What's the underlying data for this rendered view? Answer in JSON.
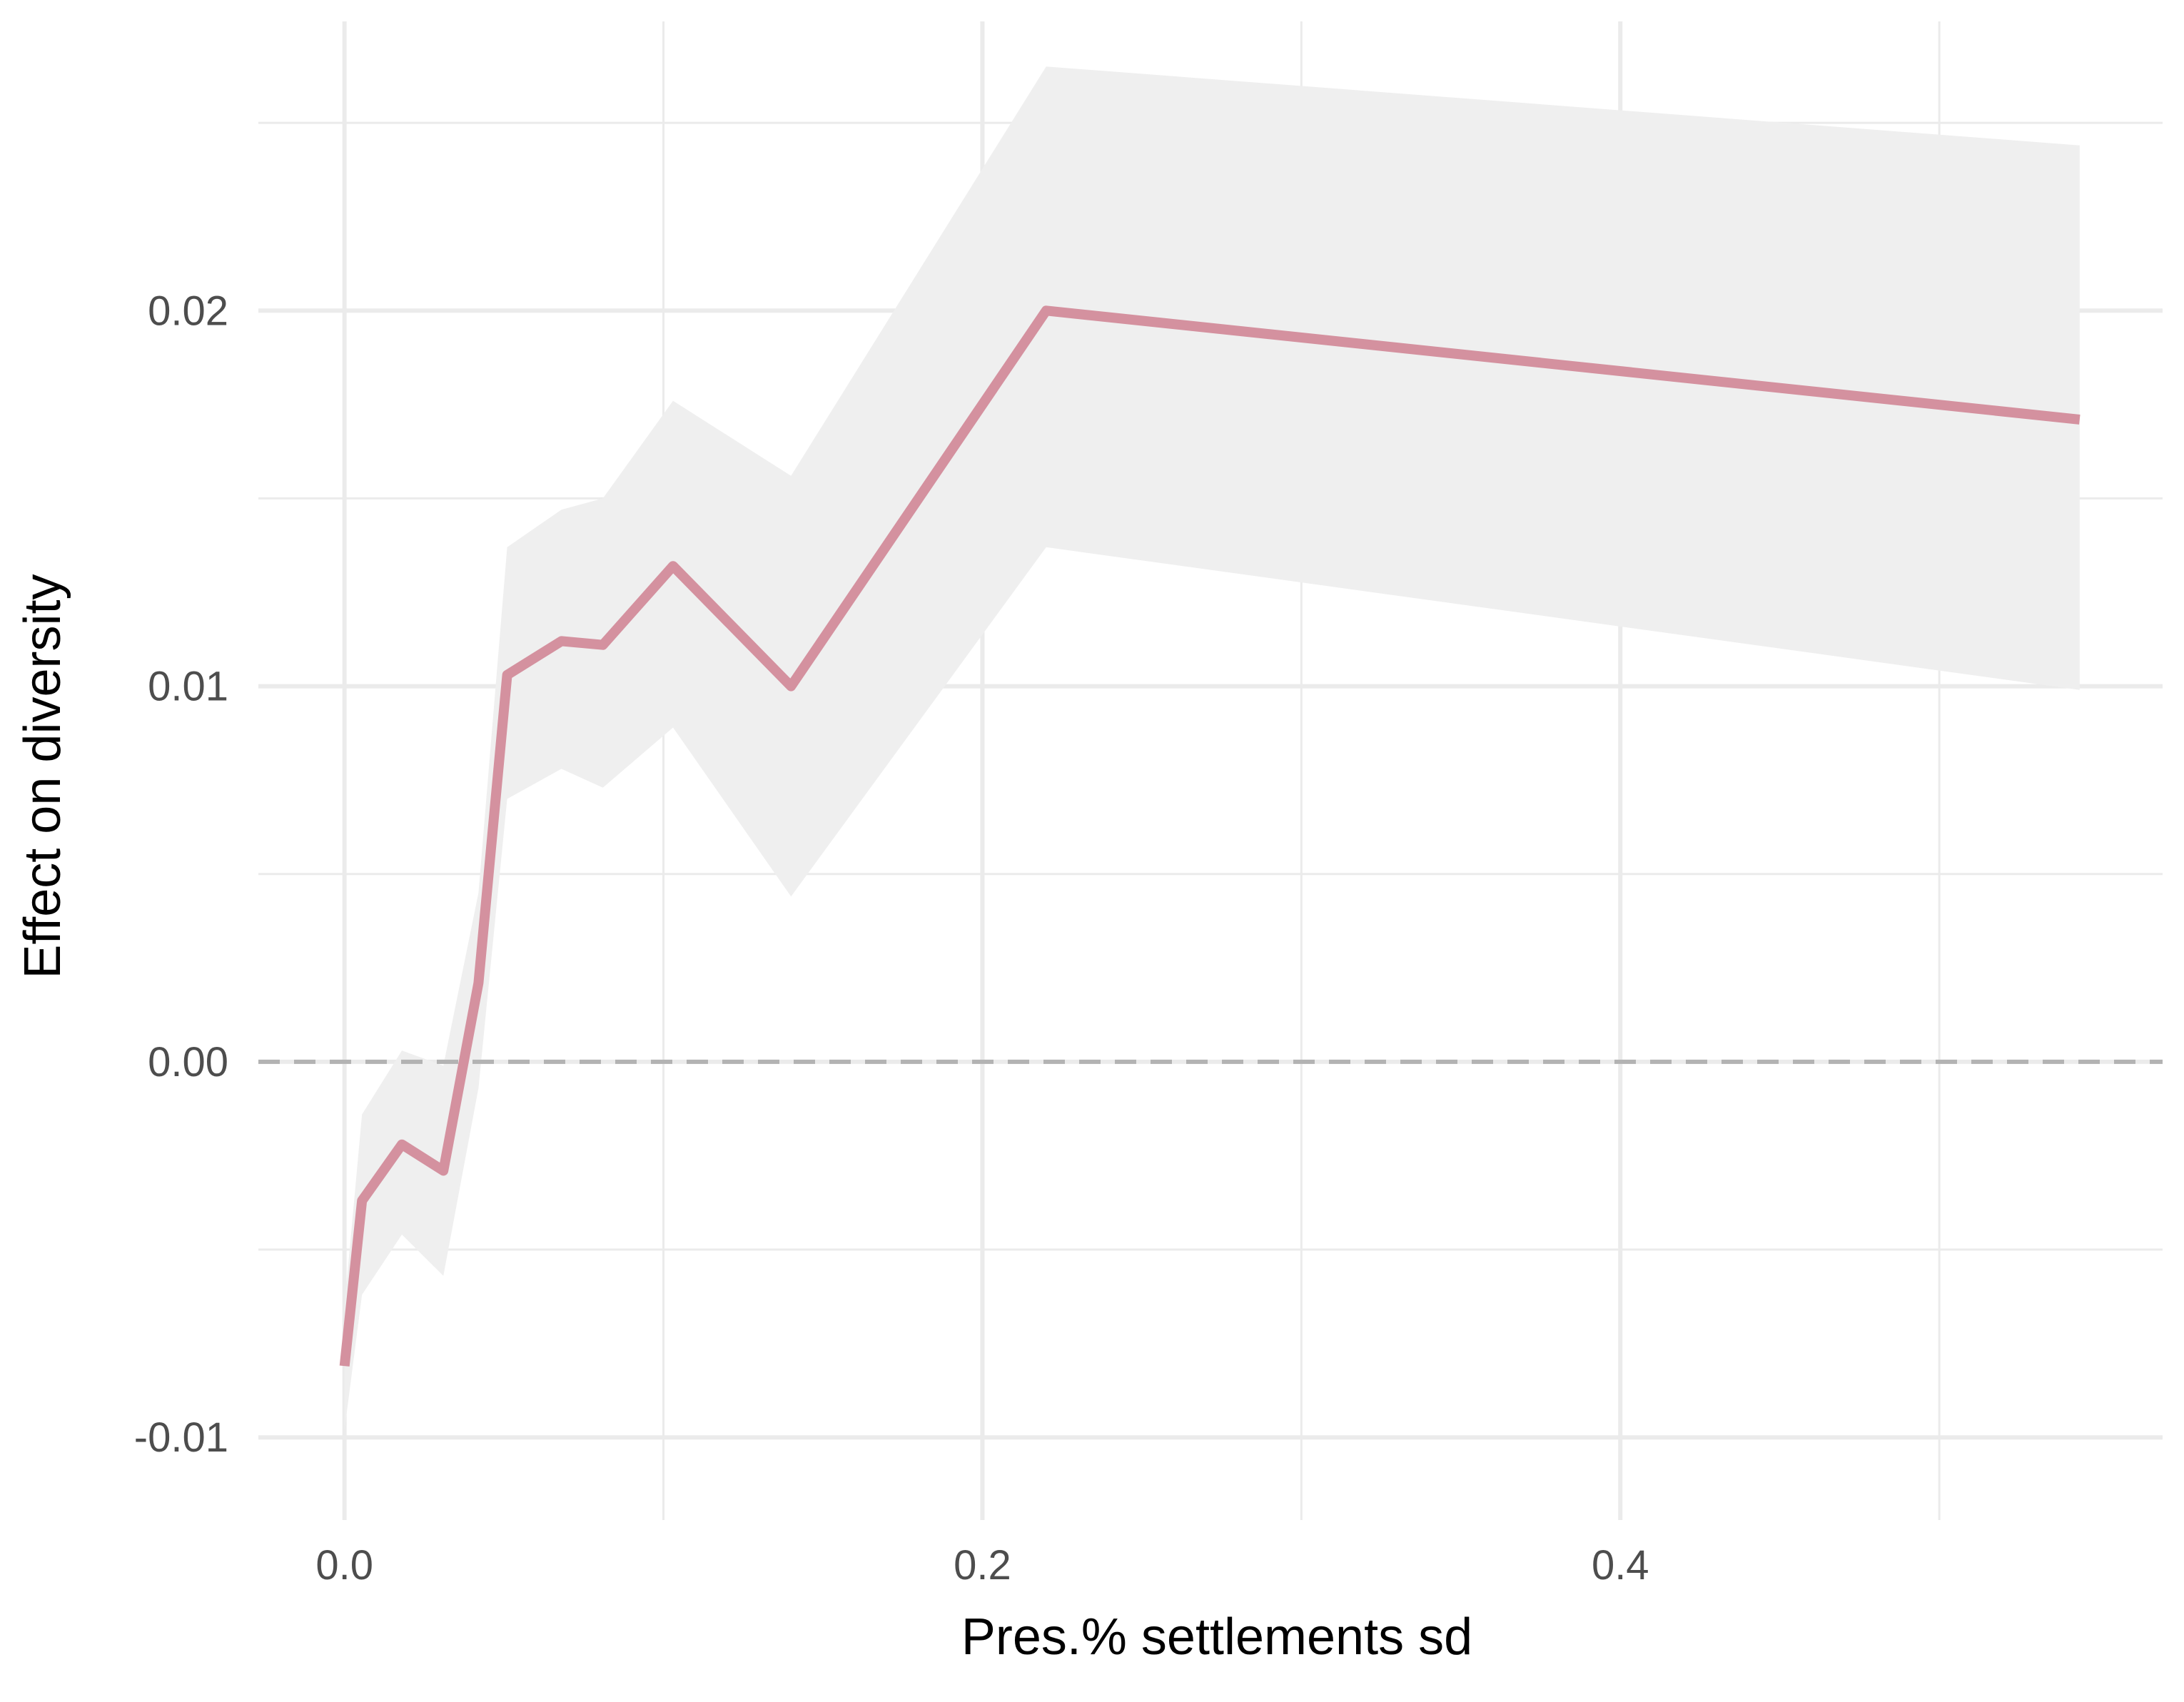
{
  "chart_data": {
    "type": "line",
    "title": "",
    "xlabel": "Pres.% settlements sd",
    "ylabel": "Effect on diversity",
    "xlim": [
      -0.027,
      0.57
    ],
    "ylim": [
      -0.0122,
      0.0277
    ],
    "x_ticks": [
      0.0,
      0.2,
      0.4
    ],
    "x_tick_labels": [
      "0.0",
      "0.2",
      "0.4"
    ],
    "x_minor_ticks": [
      0.1,
      0.3,
      0.5
    ],
    "y_ticks": [
      -0.01,
      0.0,
      0.01,
      0.02
    ],
    "y_tick_labels": [
      "-0.01",
      "0.00",
      "0.01",
      "0.02"
    ],
    "y_minor_ticks": [
      -0.005,
      0.005,
      0.015,
      0.025
    ],
    "grid": true,
    "reference_line": {
      "y": 0.0,
      "style": "dashed",
      "color": "#b3b3b3"
    },
    "colors": {
      "line": "#d4919f",
      "band": "#efefef",
      "grid": "#ebebeb"
    },
    "series": [
      {
        "x": [
          0.0,
          0.0055,
          0.018,
          0.031,
          0.042,
          0.051,
          0.068,
          0.081,
          0.103,
          0.14,
          0.22,
          0.544
        ],
        "y": [
          -0.0081,
          -0.0037,
          -0.0022,
          -0.0029,
          0.0021,
          0.0103,
          0.0112,
          0.0111,
          0.0132,
          0.01,
          0.02,
          0.0171
        ],
        "lower": [
          -0.0098,
          -0.0062,
          -0.0046,
          -0.0057,
          -0.0007,
          0.007,
          0.0078,
          0.0073,
          0.0089,
          0.0044,
          0.0137,
          0.0099
        ],
        "upper": [
          -0.0065,
          -0.0014,
          0.0003,
          -0.0001,
          0.0045,
          0.0137,
          0.0147,
          0.015,
          0.0176,
          0.0156,
          0.0265,
          0.0244
        ]
      }
    ]
  }
}
